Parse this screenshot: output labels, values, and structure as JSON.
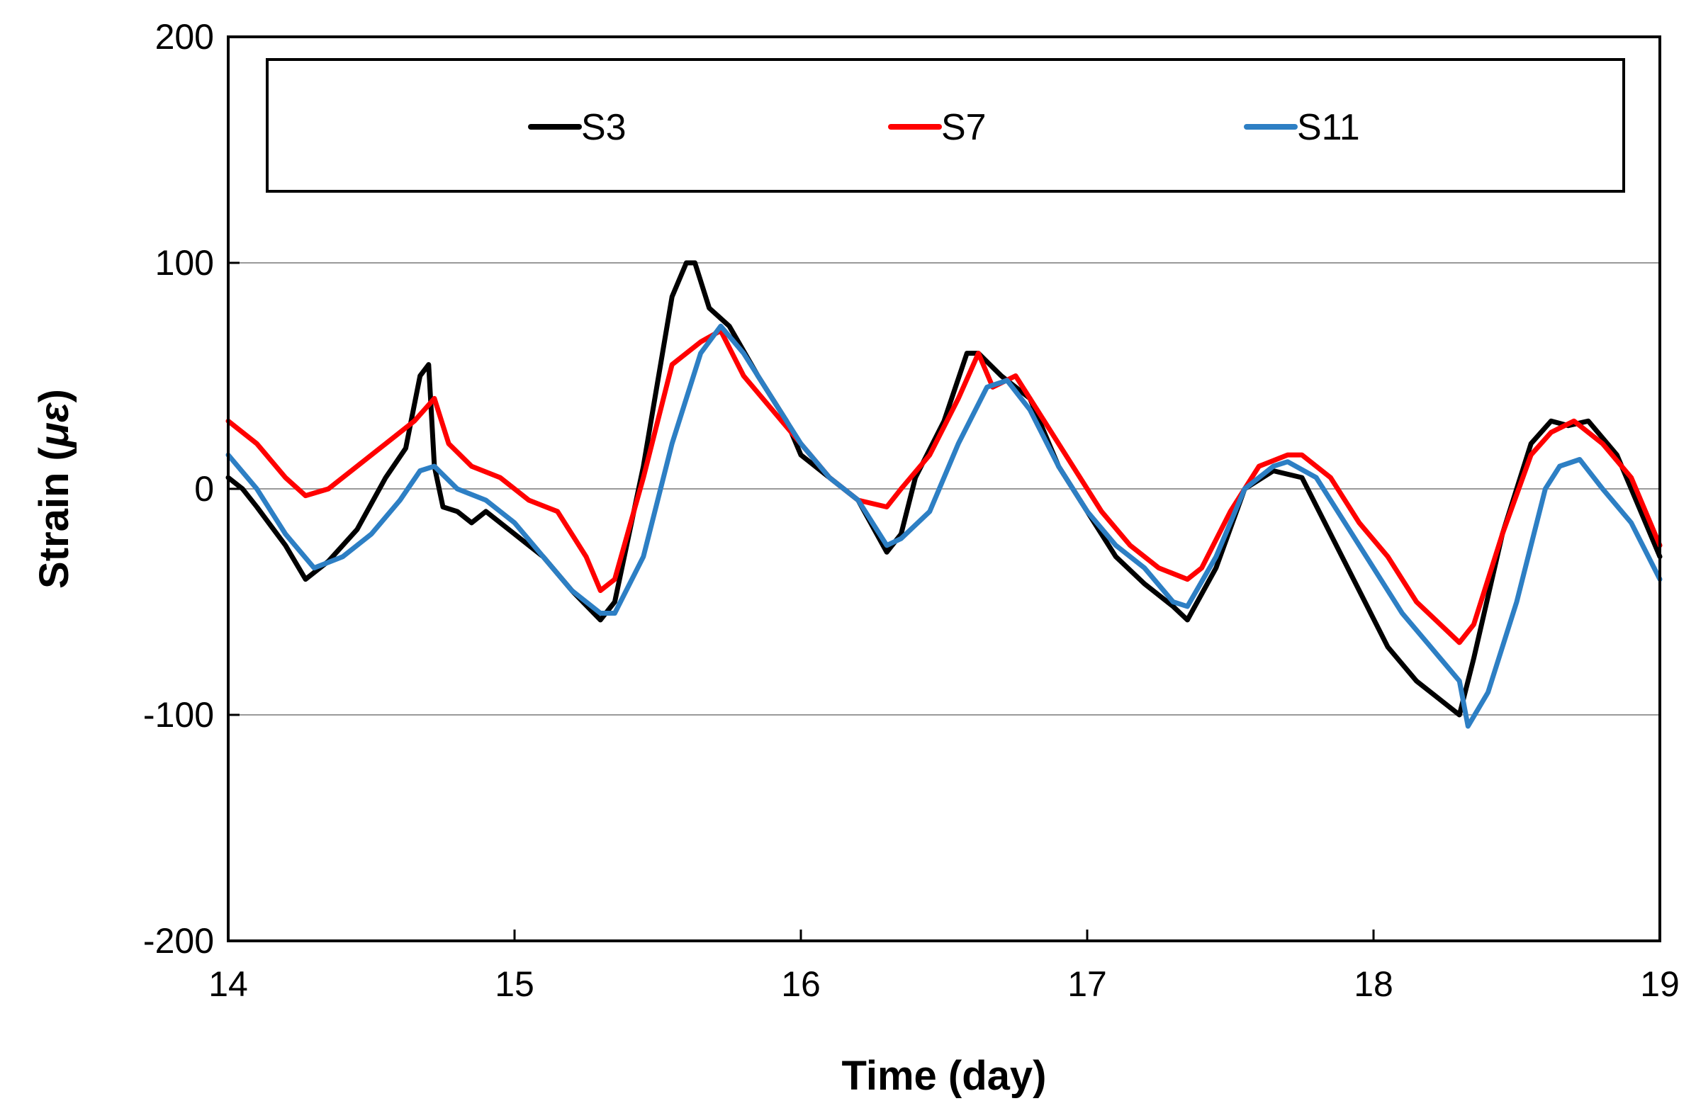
{
  "chart_data": {
    "type": "line",
    "title": "",
    "xlabel": "Time (day)",
    "ylabel_prefix": "Strain (",
    "ylabel_unit": "με",
    "ylabel_suffix": ")",
    "xlim": [
      14,
      19
    ],
    "ylim": [
      -200,
      200
    ],
    "xticks": [
      14,
      15,
      16,
      17,
      18,
      19
    ],
    "yticks": [
      -200,
      -100,
      0,
      100,
      200
    ],
    "xtick_labels": [
      "14",
      "15",
      "16",
      "17",
      "18",
      "19"
    ],
    "ytick_labels": [
      "-200",
      "-100",
      "0",
      "100",
      "200"
    ],
    "gridlines": [
      -100,
      0,
      100
    ],
    "legend_position": "top",
    "series": [
      {
        "name": "S3",
        "color": "#000000",
        "x": [
          14.0,
          14.05,
          14.1,
          14.2,
          14.27,
          14.35,
          14.45,
          14.55,
          14.62,
          14.67,
          14.7,
          14.72,
          14.75,
          14.8,
          14.85,
          14.9,
          15.0,
          15.1,
          15.2,
          15.3,
          15.35,
          15.45,
          15.55,
          15.6,
          15.63,
          15.68,
          15.75,
          15.85,
          15.95,
          16.0,
          16.1,
          16.2,
          16.3,
          16.35,
          16.4,
          16.5,
          16.58,
          16.62,
          16.7,
          16.8,
          16.9,
          17.0,
          17.1,
          17.2,
          17.3,
          17.35,
          17.45,
          17.55,
          17.65,
          17.75,
          17.85,
          17.95,
          18.05,
          18.15,
          18.3,
          18.35,
          18.45,
          18.55,
          18.62,
          18.68,
          18.75,
          18.85,
          19.0
        ],
        "y": [
          5,
          0,
          -8,
          -25,
          -40,
          -32,
          -18,
          5,
          18,
          50,
          55,
          10,
          -8,
          -10,
          -15,
          -10,
          -20,
          -30,
          -45,
          -58,
          -50,
          10,
          85,
          100,
          100,
          80,
          72,
          50,
          30,
          15,
          5,
          -5,
          -28,
          -20,
          5,
          30,
          60,
          60,
          50,
          40,
          10,
          -10,
          -30,
          -42,
          -52,
          -58,
          -35,
          0,
          8,
          5,
          -20,
          -45,
          -70,
          -85,
          -100,
          -75,
          -20,
          20,
          30,
          28,
          30,
          15,
          -30
        ]
      },
      {
        "name": "S7",
        "color": "#ff0000",
        "x": [
          14.0,
          14.1,
          14.2,
          14.27,
          14.35,
          14.45,
          14.55,
          14.65,
          14.72,
          14.77,
          14.85,
          14.95,
          15.05,
          15.15,
          15.25,
          15.3,
          15.35,
          15.45,
          15.55,
          15.65,
          15.72,
          15.8,
          15.9,
          16.0,
          16.1,
          16.2,
          16.3,
          16.35,
          16.45,
          16.55,
          16.62,
          16.67,
          16.75,
          16.85,
          16.95,
          17.05,
          17.15,
          17.25,
          17.35,
          17.4,
          17.5,
          17.6,
          17.7,
          17.75,
          17.85,
          17.95,
          18.05,
          18.15,
          18.3,
          18.35,
          18.45,
          18.55,
          18.62,
          18.7,
          18.8,
          18.9,
          19.0
        ],
        "y": [
          30,
          20,
          5,
          -3,
          0,
          10,
          20,
          30,
          40,
          20,
          10,
          5,
          -5,
          -10,
          -30,
          -45,
          -40,
          5,
          55,
          65,
          70,
          50,
          35,
          20,
          5,
          -5,
          -8,
          0,
          15,
          40,
          60,
          45,
          50,
          30,
          10,
          -10,
          -25,
          -35,
          -40,
          -35,
          -10,
          10,
          15,
          15,
          5,
          -15,
          -30,
          -50,
          -68,
          -60,
          -20,
          15,
          25,
          30,
          20,
          5,
          -25
        ]
      },
      {
        "name": "S11",
        "color": "#2d7fc4",
        "x": [
          14.0,
          14.1,
          14.2,
          14.3,
          14.4,
          14.5,
          14.6,
          14.67,
          14.72,
          14.8,
          14.9,
          15.0,
          15.1,
          15.2,
          15.3,
          15.35,
          15.45,
          15.55,
          15.65,
          15.72,
          15.8,
          15.9,
          16.0,
          16.1,
          16.2,
          16.3,
          16.35,
          16.45,
          16.55,
          16.65,
          16.72,
          16.8,
          16.9,
          17.0,
          17.1,
          17.2,
          17.3,
          17.35,
          17.45,
          17.55,
          17.65,
          17.7,
          17.8,
          17.9,
          18.0,
          18.1,
          18.2,
          18.3,
          18.33,
          18.4,
          18.5,
          18.6,
          18.65,
          18.72,
          18.8,
          18.9,
          19.0
        ],
        "y": [
          15,
          0,
          -20,
          -35,
          -30,
          -20,
          -5,
          8,
          10,
          0,
          -5,
          -15,
          -30,
          -45,
          -55,
          -55,
          -30,
          20,
          60,
          72,
          60,
          40,
          20,
          5,
          -5,
          -25,
          -22,
          -10,
          20,
          45,
          48,
          35,
          10,
          -10,
          -25,
          -35,
          -50,
          -52,
          -30,
          0,
          10,
          12,
          5,
          -15,
          -35,
          -55,
          -70,
          -85,
          -105,
          -90,
          -50,
          0,
          10,
          13,
          0,
          -15,
          -40
        ]
      }
    ]
  }
}
